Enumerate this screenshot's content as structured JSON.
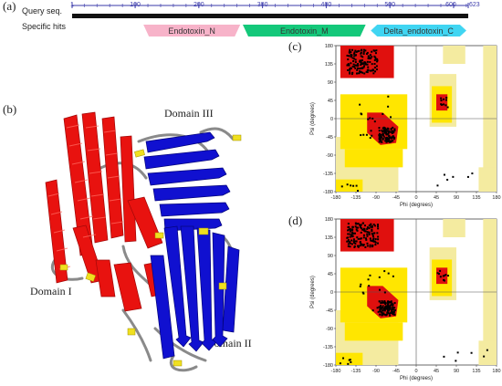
{
  "panels": {
    "a": "(a)",
    "b": "(b)",
    "c": "(c)",
    "d": "(d)"
  },
  "domain_track": {
    "query_label": "Query seq.",
    "hits_label": "Specific hits",
    "ruler_ticks": [
      "1",
      "100",
      "200",
      "300",
      "400",
      "500",
      "600",
      "623"
    ],
    "domains": [
      {
        "name": "Endotoxin_N",
        "color": "#f7b3c9",
        "start": 113,
        "end": 265
      },
      {
        "name": "Endotoxin_M",
        "color": "#14c87a",
        "start": 269,
        "end": 462
      },
      {
        "name": "Delta_endotoxin_C",
        "color": "#40d5f2",
        "start": 470,
        "end": 620
      }
    ]
  },
  "structure": {
    "domain1": "Domain I",
    "domain2": "Domain II",
    "domain3": "Domain III",
    "colors": {
      "helix": "#e8120f",
      "sheet": "#1010d0",
      "loop": "#8a8a8a",
      "turn": "#f0e020"
    }
  },
  "ramachandran": {
    "x_label": "Phi (degrees)",
    "y_label": "Psi (degrees)",
    "x_ticks": [
      "-180",
      "-135",
      "-90",
      "-45",
      "0",
      "45",
      "90",
      "135",
      "180"
    ],
    "y_ticks": [
      "180",
      "135",
      "90",
      "45",
      "0",
      "-45",
      "-90",
      "-135",
      "-180"
    ],
    "colors": {
      "core": "#e0100e",
      "allowed": "#ffe600",
      "generous": "#f4eba0",
      "points": "#000000"
    }
  }
}
